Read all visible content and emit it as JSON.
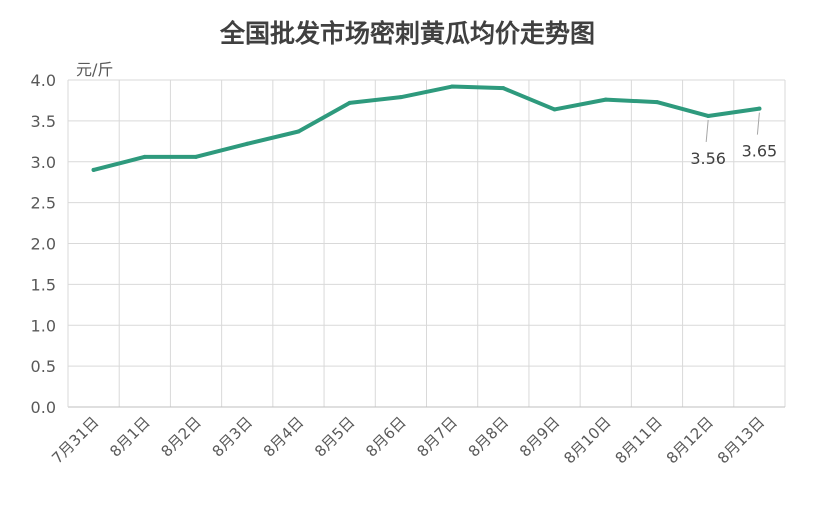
{
  "chart_data": {
    "type": "line",
    "title": "全国批发市场密刺黄瓜均价走势图",
    "ylabel": "元/斤",
    "xlabel": "",
    "categories": [
      "7月31日",
      "8月1日",
      "8月2日",
      "8月3日",
      "8月4日",
      "8月5日",
      "8月6日",
      "8月7日",
      "8月8日",
      "8月9日",
      "8月10日",
      "8月11日",
      "8月12日",
      "8月13日"
    ],
    "series": [
      {
        "values": [
          2.9,
          3.06,
          3.06,
          3.22,
          3.37,
          3.72,
          3.79,
          3.92,
          3.9,
          3.64,
          3.76,
          3.73,
          3.56,
          3.65
        ]
      }
    ],
    "ylim": [
      0,
      4.0
    ],
    "yticks": [
      "0.0",
      "0.5",
      "1.0",
      "1.5",
      "2.0",
      "2.5",
      "3.0",
      "3.5",
      "4.0"
    ],
    "grid": true,
    "line_color": "#2e9a7d",
    "data_labels": [
      {
        "index": 12,
        "text": "3.56"
      },
      {
        "index": 13,
        "text": "3.65"
      }
    ]
  }
}
